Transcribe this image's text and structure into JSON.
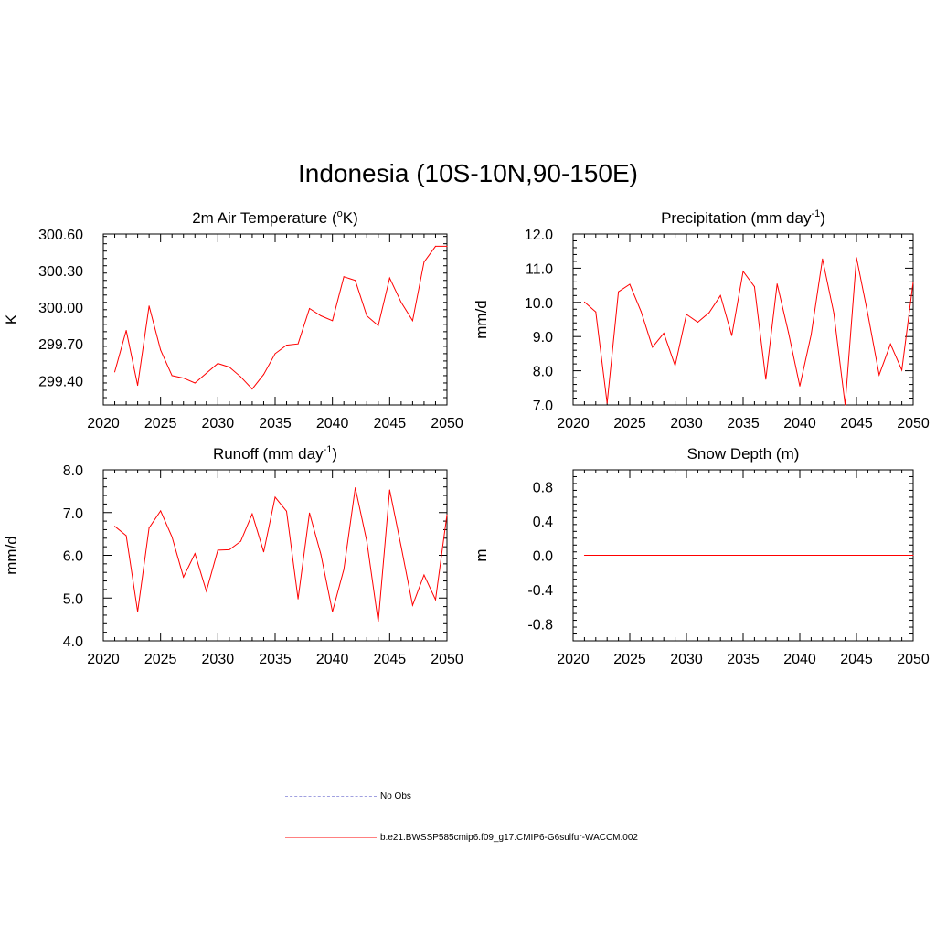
{
  "title": "Indonesia (10S-10N,90-150E)",
  "legend": [
    {
      "label": "No Obs",
      "color": "#a0a0e0",
      "style": "dashed"
    },
    {
      "label": "b.e21.BWSSP585cmip6.f09_g17.CMIP6-G6sulfur-WACCM.002",
      "color": "#ff0000",
      "style": "solid"
    }
  ],
  "chart_data": [
    {
      "type": "line",
      "title": "2m Air Temperature (oK)",
      "title_parts": {
        "prefix": "2m Air Temperature (",
        "sup": "o",
        "suffix": "K)"
      },
      "ylabel": "K",
      "xlim": [
        2020,
        2050
      ],
      "ylim": [
        299.2,
        300.6
      ],
      "xticks": [
        "2020",
        "2025",
        "2030",
        "2035",
        "2040",
        "2045",
        "2050"
      ],
      "yticks": [
        "299.40",
        "299.70",
        "300.00",
        "300.30",
        "300.60"
      ],
      "series": [
        {
          "color": "#ff0000",
          "x": [
            2021,
            2022,
            2023,
            2024,
            2025,
            2026,
            2027,
            2028,
            2029,
            2030,
            2031,
            2032,
            2033,
            2034,
            2035,
            2036,
            2037,
            2038,
            2039,
            2040,
            2041,
            2042,
            2043,
            2044,
            2045,
            2046,
            2047,
            2048,
            2049,
            2050
          ],
          "values": [
            299.47,
            299.81,
            299.36,
            300.01,
            299.65,
            299.44,
            299.42,
            299.38,
            299.46,
            299.54,
            299.51,
            299.43,
            299.33,
            299.45,
            299.62,
            299.69,
            299.7,
            299.99,
            299.93,
            299.89,
            300.25,
            300.22,
            299.93,
            299.85,
            300.24,
            300.04,
            299.89,
            300.37,
            300.5,
            300.5
          ]
        }
      ]
    },
    {
      "type": "line",
      "title": "Precipitation (mm day-1)",
      "title_parts": {
        "prefix": "Precipitation (mm day",
        "sup": "-1",
        "suffix": ")"
      },
      "ylabel": "mm/d",
      "xlim": [
        2020,
        2050
      ],
      "ylim": [
        7.0,
        12.0
      ],
      "xticks": [
        "2020",
        "2025",
        "2030",
        "2035",
        "2040",
        "2045",
        "2050"
      ],
      "yticks": [
        "7.0",
        "8.0",
        "9.0",
        "10.0",
        "11.0",
        "12.0"
      ],
      "series": [
        {
          "color": "#ff0000",
          "x": [
            2021,
            2022,
            2023,
            2024,
            2025,
            2026,
            2027,
            2028,
            2029,
            2030,
            2031,
            2032,
            2033,
            2034,
            2035,
            2036,
            2037,
            2038,
            2039,
            2040,
            2041,
            2042,
            2043,
            2044,
            2045,
            2046,
            2047,
            2048,
            2049,
            2050
          ],
          "values": [
            10.01,
            9.72,
            7.05,
            10.31,
            10.53,
            9.73,
            8.69,
            9.1,
            8.15,
            9.65,
            9.42,
            9.7,
            10.2,
            9.03,
            10.91,
            10.46,
            7.75,
            10.54,
            9.12,
            7.55,
            9.05,
            11.27,
            9.69,
            7.0,
            11.31,
            9.66,
            7.88,
            8.78,
            8.02,
            10.6
          ]
        }
      ]
    },
    {
      "type": "line",
      "title": "Runoff (mm day-1)",
      "title_parts": {
        "prefix": "Runoff (mm day",
        "sup": "-1",
        "suffix": ")"
      },
      "ylabel": "mm/d",
      "xlim": [
        2020,
        2050
      ],
      "ylim": [
        4.0,
        8.0
      ],
      "xticks": [
        "2020",
        "2025",
        "2030",
        "2035",
        "2040",
        "2045",
        "2050"
      ],
      "yticks": [
        "4.0",
        "5.0",
        "6.0",
        "7.0",
        "8.0"
      ],
      "series": [
        {
          "color": "#ff0000",
          "x": [
            2021,
            2022,
            2023,
            2024,
            2025,
            2026,
            2027,
            2028,
            2029,
            2030,
            2031,
            2032,
            2033,
            2034,
            2035,
            2036,
            2037,
            2038,
            2039,
            2040,
            2041,
            2042,
            2043,
            2044,
            2045,
            2046,
            2047,
            2048,
            2049,
            2050
          ],
          "values": [
            6.68,
            6.46,
            4.68,
            6.64,
            7.04,
            6.43,
            5.49,
            6.04,
            5.16,
            6.12,
            6.13,
            6.33,
            6.97,
            6.08,
            7.36,
            7.03,
            4.98,
            6.99,
            6.02,
            4.68,
            5.67,
            7.58,
            6.33,
            4.44,
            7.53,
            6.2,
            4.83,
            5.54,
            4.96,
            6.95
          ]
        }
      ]
    },
    {
      "type": "line",
      "title": "Snow Depth (m)",
      "title_parts": {
        "prefix": "Snow Depth (m)",
        "sup": "",
        "suffix": ""
      },
      "ylabel": "m",
      "xlim": [
        2020,
        2050
      ],
      "ylim": [
        -1.0,
        1.0
      ],
      "xticks": [
        "2020",
        "2025",
        "2030",
        "2035",
        "2040",
        "2045",
        "2050"
      ],
      "yticks": [
        "-0.8",
        "-0.4",
        "0.0",
        "0.4",
        "0.8"
      ],
      "series": [
        {
          "color": "#ff0000",
          "x": [
            2021,
            2022,
            2023,
            2024,
            2025,
            2026,
            2027,
            2028,
            2029,
            2030,
            2031,
            2032,
            2033,
            2034,
            2035,
            2036,
            2037,
            2038,
            2039,
            2040,
            2041,
            2042,
            2043,
            2044,
            2045,
            2046,
            2047,
            2048,
            2049,
            2050
          ],
          "values": [
            0,
            0,
            0,
            0,
            0,
            0,
            0,
            0,
            0,
            0,
            0,
            0,
            0,
            0,
            0,
            0,
            0,
            0,
            0,
            0,
            0,
            0,
            0,
            0,
            0,
            0,
            0,
            0,
            0,
            0
          ]
        }
      ]
    }
  ]
}
